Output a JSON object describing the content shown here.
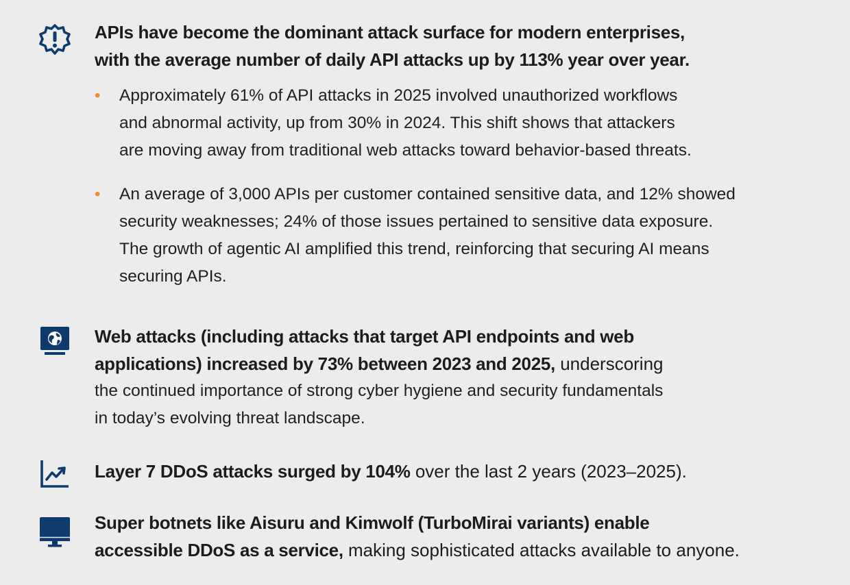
{
  "colors": {
    "background": "#ececec",
    "icon_blue": "#0e3a6e",
    "bullet_orange": "#f08a24",
    "text": "#1f1f1f"
  },
  "section1": {
    "icon": "alert-badge-icon",
    "heading_lines": [
      "APIs have become the dominant attack surface for modern enterprises,",
      "with the average number of daily API attacks up by 113% year over year."
    ],
    "bullets": [
      {
        "lines": [
          "Approximately 61% of API attacks in 2025 involved unauthorized workflows",
          "and abnormal activity, up from 30% in 2024. This shift shows that attackers",
          "are moving away from traditional web attacks toward behavior-based threats."
        ]
      },
      {
        "lines": [
          "An average of 3,000 APIs per customer contained sensitive data, and 12% showed",
          "security weaknesses; 24% of those issues pertained to sensitive data exposure.",
          "The growth of agentic AI amplified this trend, reinforcing that securing AI means",
          "securing APIs."
        ]
      }
    ]
  },
  "section2": {
    "icon": "globe-monitor-icon",
    "bold_lines": [
      "Web attacks (including attacks that target API endpoints and web",
      "applications) increased by 73% between 2023 and 2025,"
    ],
    "trailing_text": " underscoring",
    "normal_lines": [
      "the continued importance of strong cyber hygiene and security fundamentals",
      "in today’s evolving threat landscape."
    ]
  },
  "section3": {
    "icon": "trend-chart-icon",
    "bold": "Layer 7 DDoS attacks surged by 104%",
    "normal": " over the last 2 years (2023–2025)."
  },
  "section4": {
    "icon": "desktop-monitor-icon",
    "bold_lines": [
      "Super botnets like Aisuru and Kimwolf (TurboMirai variants) enable",
      "accessible DDoS as a service,"
    ],
    "normal": " making sophisticated attacks available to anyone."
  }
}
